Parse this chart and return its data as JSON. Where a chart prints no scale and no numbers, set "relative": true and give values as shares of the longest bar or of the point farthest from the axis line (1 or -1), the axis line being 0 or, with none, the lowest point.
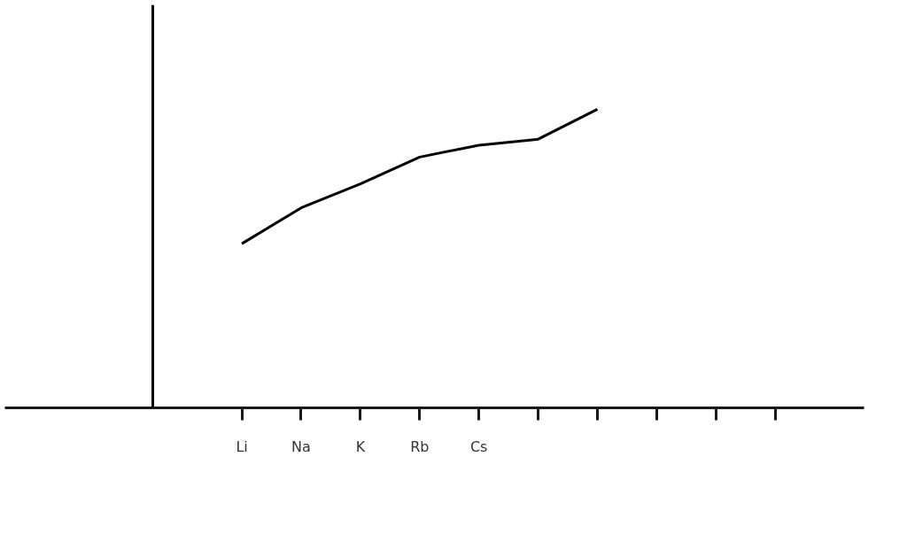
{
  "chart_data": {
    "type": "line",
    "relative": true,
    "categories": [
      "Li",
      "Na",
      "K",
      "Rb",
      "Cs",
      null,
      null,
      null,
      null,
      null
    ],
    "series": [
      {
        "color": "#000000",
        "values": [
          0.55,
          0.67,
          0.75,
          0.84,
          0.88,
          0.9,
          1,
          null,
          null,
          null
        ]
      }
    ],
    "grid": false,
    "marker": "none",
    "line_style": "solid"
  }
}
